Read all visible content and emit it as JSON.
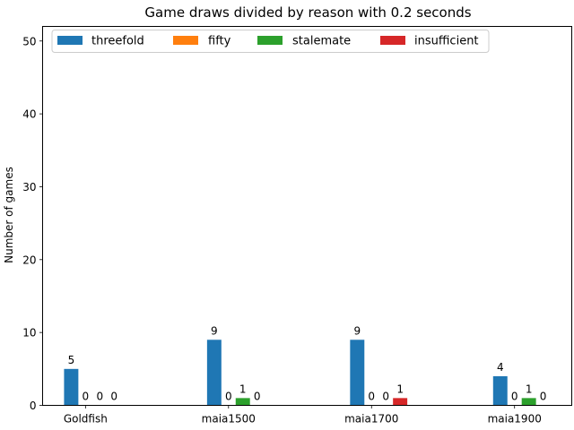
{
  "chart_data": {
    "type": "bar",
    "title": "Game draws divided by reason with 0.2 seconds",
    "xlabel": "",
    "ylabel": "Number of games",
    "categories": [
      "Goldfish",
      "maia1500",
      "maia1700",
      "maia1900"
    ],
    "series": [
      {
        "name": "threefold",
        "color": "#1f77b4",
        "values": [
          5,
          9,
          9,
          4
        ]
      },
      {
        "name": "fifty",
        "color": "#ff7f0e",
        "values": [
          0,
          0,
          0,
          0
        ]
      },
      {
        "name": "stalemate",
        "color": "#2ca02c",
        "values": [
          0,
          1,
          0,
          1
        ]
      },
      {
        "name": "insufficient",
        "color": "#d62728",
        "values": [
          0,
          0,
          1,
          0
        ]
      }
    ],
    "data_labels": [
      [
        "5",
        "0",
        "0",
        "0"
      ],
      [
        "9",
        "0",
        "1",
        "0"
      ],
      [
        "9",
        "0",
        "0",
        "1"
      ],
      [
        "4",
        "0",
        "1",
        "0"
      ]
    ],
    "ylim": [
      0,
      52
    ],
    "yticks": [
      0,
      10,
      20,
      30,
      40,
      50
    ],
    "grid": false,
    "legend_placement": "top-left"
  }
}
